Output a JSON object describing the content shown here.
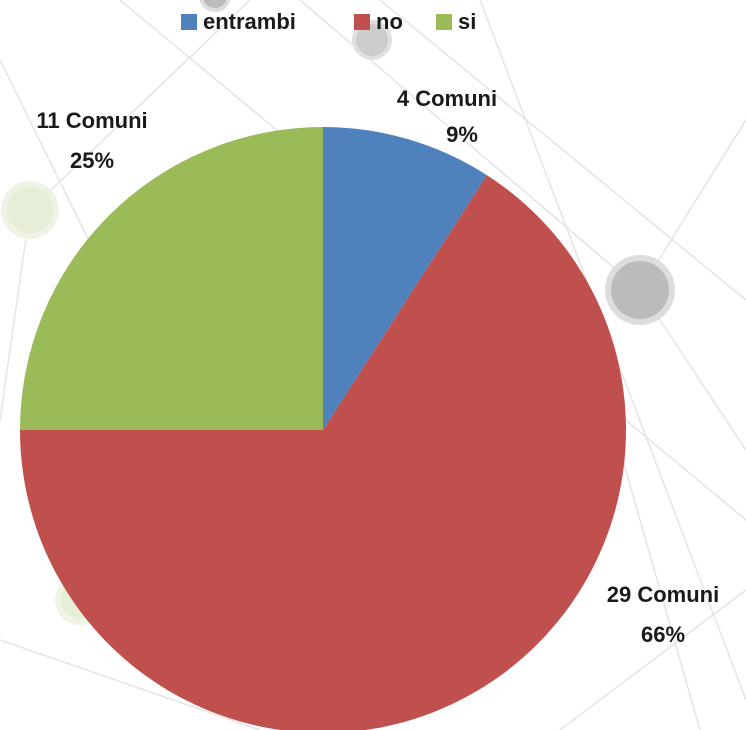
{
  "chart_data": {
    "type": "pie",
    "categories": [
      "entrambi",
      "no",
      "si"
    ],
    "values": [
      4,
      29,
      11
    ],
    "value_labels": [
      "4 Comuni",
      "29 Comuni",
      "11 Comuni"
    ],
    "percent_labels": [
      "9%",
      "66%",
      "25%"
    ],
    "colors": [
      "#4f81bd",
      "#c0504d",
      "#9bbb59"
    ],
    "legend": "top"
  }
}
